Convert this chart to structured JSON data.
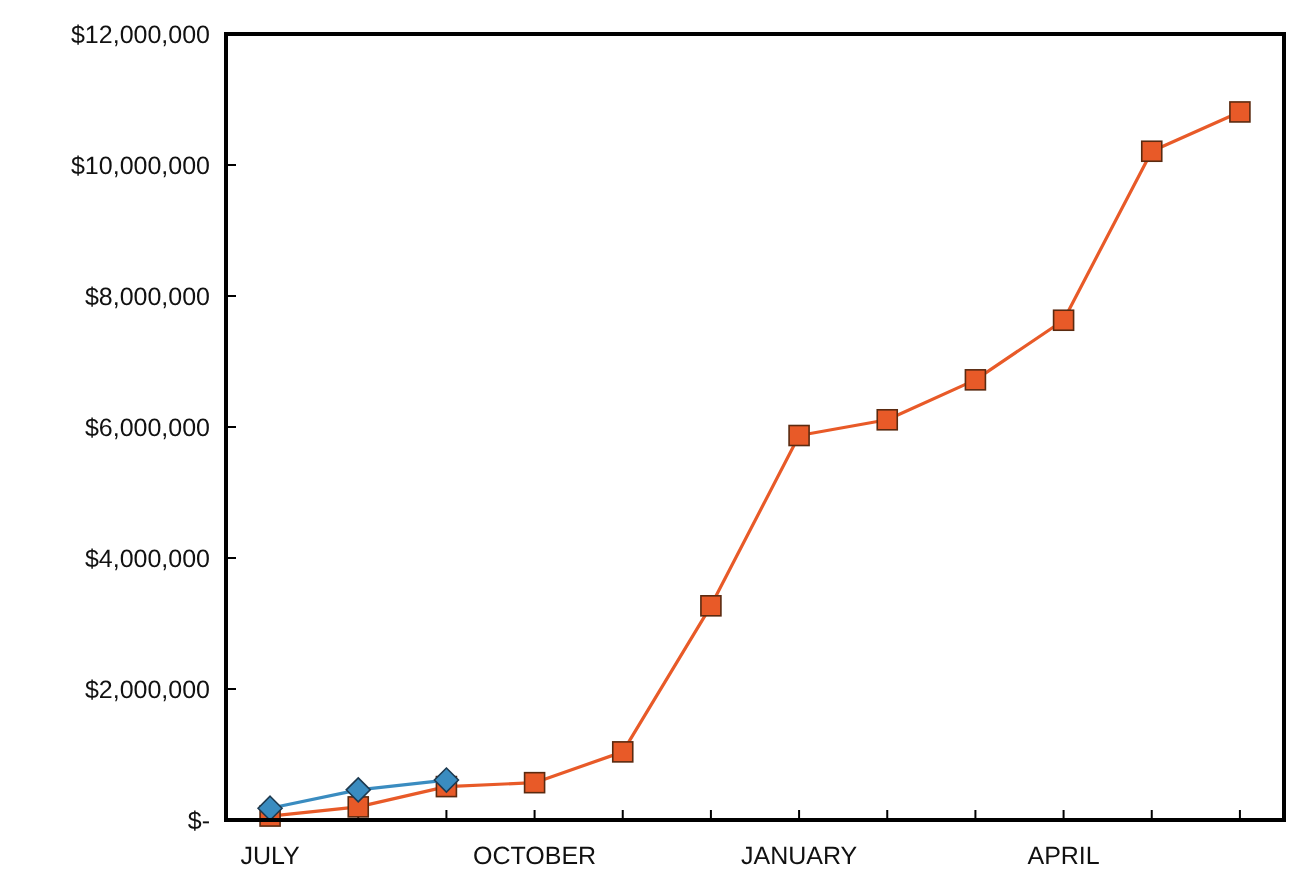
{
  "chart_data": {
    "type": "line",
    "categories": [
      "JULY",
      null,
      null,
      "OCTOBER",
      null,
      null,
      "JANUARY",
      null,
      null,
      "APRIL",
      null,
      null
    ],
    "series": [
      {
        "color": "#3a8cc0",
        "marker": "diamond",
        "values": [
          180000,
          460000,
          610000,
          null,
          null,
          null,
          null,
          null,
          null,
          null,
          null,
          null
        ]
      },
      {
        "color": "#e85a28",
        "marker": "square",
        "values": [
          60000,
          200000,
          510000,
          570000,
          1040000,
          3270000,
          5870000,
          6110000,
          6720000,
          7630000,
          10210000,
          10810000
        ]
      }
    ],
    "ylim": [
      0,
      12000000
    ],
    "yticks": [
      {
        "value": 0,
        "label": "$-"
      },
      {
        "value": 2000000,
        "label": "$2,000,000"
      },
      {
        "value": 4000000,
        "label": "$4,000,000"
      },
      {
        "value": 6000000,
        "label": "$6,000,000"
      },
      {
        "value": 8000000,
        "label": "$8,000,000"
      },
      {
        "value": 10000000,
        "label": "$10,000,000"
      },
      {
        "value": 12000000,
        "label": "$12,000,000"
      }
    ],
    "grid": false
  }
}
